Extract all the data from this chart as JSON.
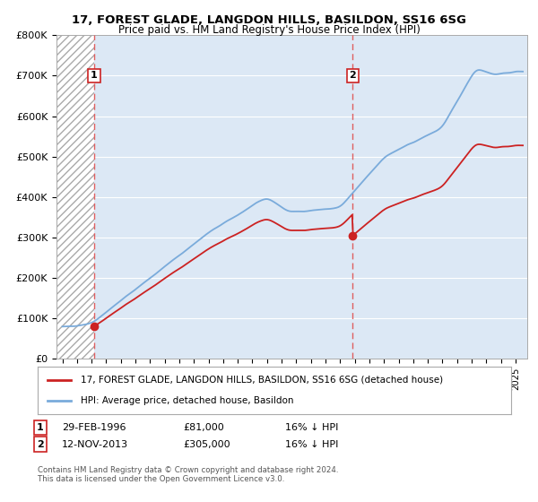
{
  "title1": "17, FOREST GLADE, LANGDON HILLS, BASILDON, SS16 6SG",
  "title2": "Price paid vs. HM Land Registry's House Price Index (HPI)",
  "ylim": [
    0,
    800000
  ],
  "yticks": [
    0,
    100000,
    200000,
    300000,
    400000,
    500000,
    600000,
    700000,
    800000
  ],
  "ytick_labels": [
    "£0",
    "£100K",
    "£200K",
    "£300K",
    "£400K",
    "£500K",
    "£600K",
    "£700K",
    "£800K"
  ],
  "xlim_start": 1993.6,
  "xlim_end": 2025.8,
  "sale1_date": 1996.17,
  "sale1_price": 81000,
  "sale1_label": "1",
  "sale2_date": 2013.87,
  "sale2_price": 305000,
  "sale2_label": "2",
  "hpi_color": "#7aabdb",
  "price_color": "#cc2222",
  "dashed_color": "#e05050",
  "background_plot": "#dce8f5",
  "legend_label1": "17, FOREST GLADE, LANGDON HILLS, BASILDON, SS16 6SG (detached house)",
  "legend_label2": "HPI: Average price, detached house, Basildon",
  "footer": "Contains HM Land Registry data © Crown copyright and database right 2024.\nThis data is licensed under the Open Government Licence v3.0.",
  "xtick_start": 1994,
  "xtick_end": 2026
}
